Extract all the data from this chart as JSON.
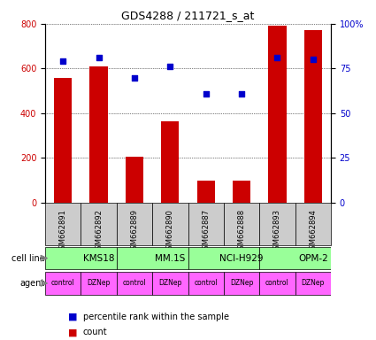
{
  "title": "GDS4288 / 211721_s_at",
  "samples": [
    "GSM662891",
    "GSM662892",
    "GSM662889",
    "GSM662890",
    "GSM662887",
    "GSM662888",
    "GSM662893",
    "GSM662894"
  ],
  "counts": [
    560,
    610,
    205,
    365,
    100,
    100,
    790,
    770
  ],
  "percentile_ranks": [
    79,
    81,
    70,
    76,
    61,
    61,
    81,
    80
  ],
  "cell_lines": [
    {
      "label": "KMS18",
      "start": 0,
      "end": 2
    },
    {
      "label": "MM.1S",
      "start": 2,
      "end": 4
    },
    {
      "label": "NCI-H929",
      "start": 4,
      "end": 6
    },
    {
      "label": "OPM-2",
      "start": 6,
      "end": 8
    }
  ],
  "agents": [
    "control",
    "DZNep",
    "control",
    "DZNep",
    "control",
    "DZNep",
    "control",
    "DZNep"
  ],
  "bar_color": "#cc0000",
  "dot_color": "#0000cc",
  "cell_line_color": "#99ff99",
  "agent_color": "#ff66ff",
  "sample_bg_color": "#cccccc",
  "ylim_left": [
    0,
    800
  ],
  "ylim_right": [
    0,
    100
  ],
  "yticks_left": [
    0,
    200,
    400,
    600,
    800
  ],
  "yticks_right": [
    0,
    25,
    50,
    75,
    100
  ],
  "ytick_labels_right": [
    "0",
    "25",
    "50",
    "75",
    "100%"
  ]
}
